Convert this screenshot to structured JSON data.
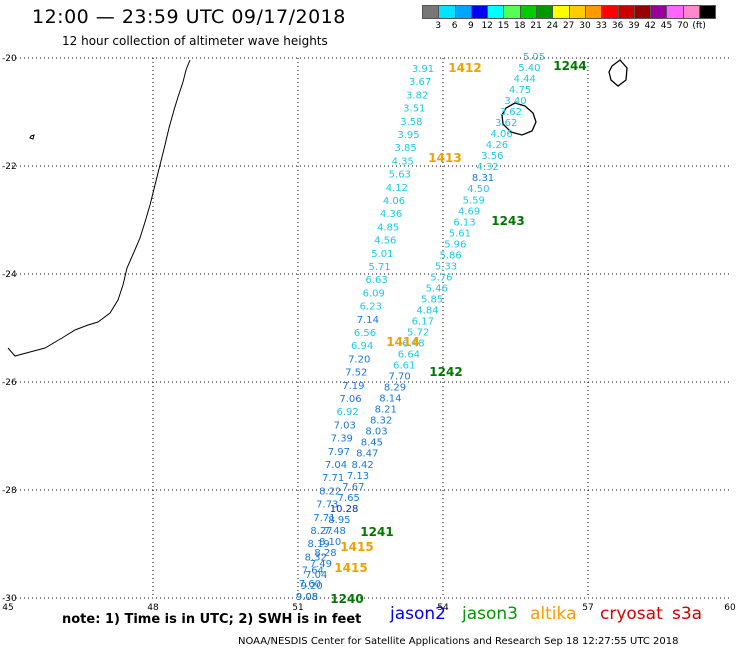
{
  "header": {
    "title": "12:00 — 23:59 UTC 09/17/2018",
    "subtitle": "12 hour collection of altimeter wave heights"
  },
  "legend": {
    "colors": [
      "#777777",
      "#00e5ff",
      "#00a5ff",
      "#0000ee",
      "#00ffff",
      "#55ff55",
      "#00cc00",
      "#009900",
      "#ffff00",
      "#ffcc00",
      "#ff9900",
      "#ff0000",
      "#cc0000",
      "#990000",
      "#990099",
      "#ff66ff",
      "#ff88cc",
      "#000000"
    ],
    "ticks": [
      "3",
      "6",
      "9",
      "12",
      "15",
      "18",
      "21",
      "24",
      "27",
      "30",
      "33",
      "36",
      "39",
      "42",
      "45",
      "70",
      "(ft)"
    ]
  },
  "axes": {
    "lon_labels": [
      "45",
      "48",
      "51",
      "54",
      "57",
      "60"
    ],
    "lat_labels": [
      "-20",
      "-22",
      "-24",
      "-26",
      "-28",
      "-30"
    ]
  },
  "styles": {
    "cyan": "#1ec8e6",
    "blue": "#1a78dc",
    "darkblue": "#0a2ab4",
    "orange": "#f0a000",
    "green": "#007800"
  },
  "track_labels": [
    {
      "text": "1244",
      "color": "green"
    },
    {
      "text": "1412",
      "color": "orange"
    },
    {
      "text": "1413",
      "color": "orange"
    },
    {
      "text": "1243",
      "color": "green"
    },
    {
      "text": "1414",
      "color": "orange"
    },
    {
      "text": "1242",
      "color": "green"
    },
    {
      "text": "1241",
      "color": "green"
    },
    {
      "text": "1415",
      "color": "orange"
    },
    {
      "text": "1415",
      "color": "orange"
    },
    {
      "text": "1240",
      "color": "green"
    }
  ],
  "track_left": [
    "3.91",
    "3.67",
    "3.82",
    "3.51",
    "3.58",
    "3.95",
    "3.85",
    "4.35",
    "5.63",
    "4.12",
    "4.06",
    "4.36",
    "4.85",
    "4.56",
    "5.01",
    "5.71",
    "6.63",
    "6.09",
    "6.23",
    "7.14",
    "6.56",
    "6.94",
    "7.20",
    "7.52",
    "7.19",
    "7.06",
    "6.92",
    "7.03",
    "7.39",
    "7.97",
    "7.04",
    "7.71",
    "8.22",
    "7.73",
    "7.71",
    "8.27",
    "8.19",
    "8.32",
    "7.64",
    "7.60",
    "9.05"
  ],
  "track_right": [
    "5.05",
    "5.40",
    "4.44",
    "4.75",
    "3.40",
    "3.62",
    "3.62",
    "4.06",
    "4.26",
    "3.56",
    "4.32",
    "8.31",
    "4.50",
    "5.59",
    "4.69",
    "6.13",
    "5.61",
    "5.96",
    "5.86",
    "5.33",
    "5.76",
    "5.46",
    "5.85",
    "4.84",
    "6.17",
    "5.72",
    "6.48",
    "6.64",
    "6.61",
    "7.70",
    "8.29",
    "8.14",
    "8.21",
    "8.32",
    "8.03",
    "8.45",
    "8.47",
    "8.42",
    "7.13",
    "7.67",
    "7.65",
    "10.28",
    "8.95",
    "7.48",
    "8.10",
    "8.28",
    "7.49",
    "7.04",
    "9.20",
    "9.08"
  ],
  "footer": {
    "note": "note: 1) Time is in UTC; 2) SWH is in feet",
    "satellites": [
      {
        "name": "jason2",
        "color": "#0000ee"
      },
      {
        "name": "jason3",
        "color": "#009900"
      },
      {
        "name": "altika",
        "color": "#ff9900"
      },
      {
        "name": "cryosat",
        "color": "#dd0000"
      },
      {
        "name": "s3a",
        "color": "#cc0000"
      }
    ],
    "credit": "NOAA/NESDIS Center for Satellite Applications and Research    Sep 18 12:27:55 UTC 2018"
  }
}
